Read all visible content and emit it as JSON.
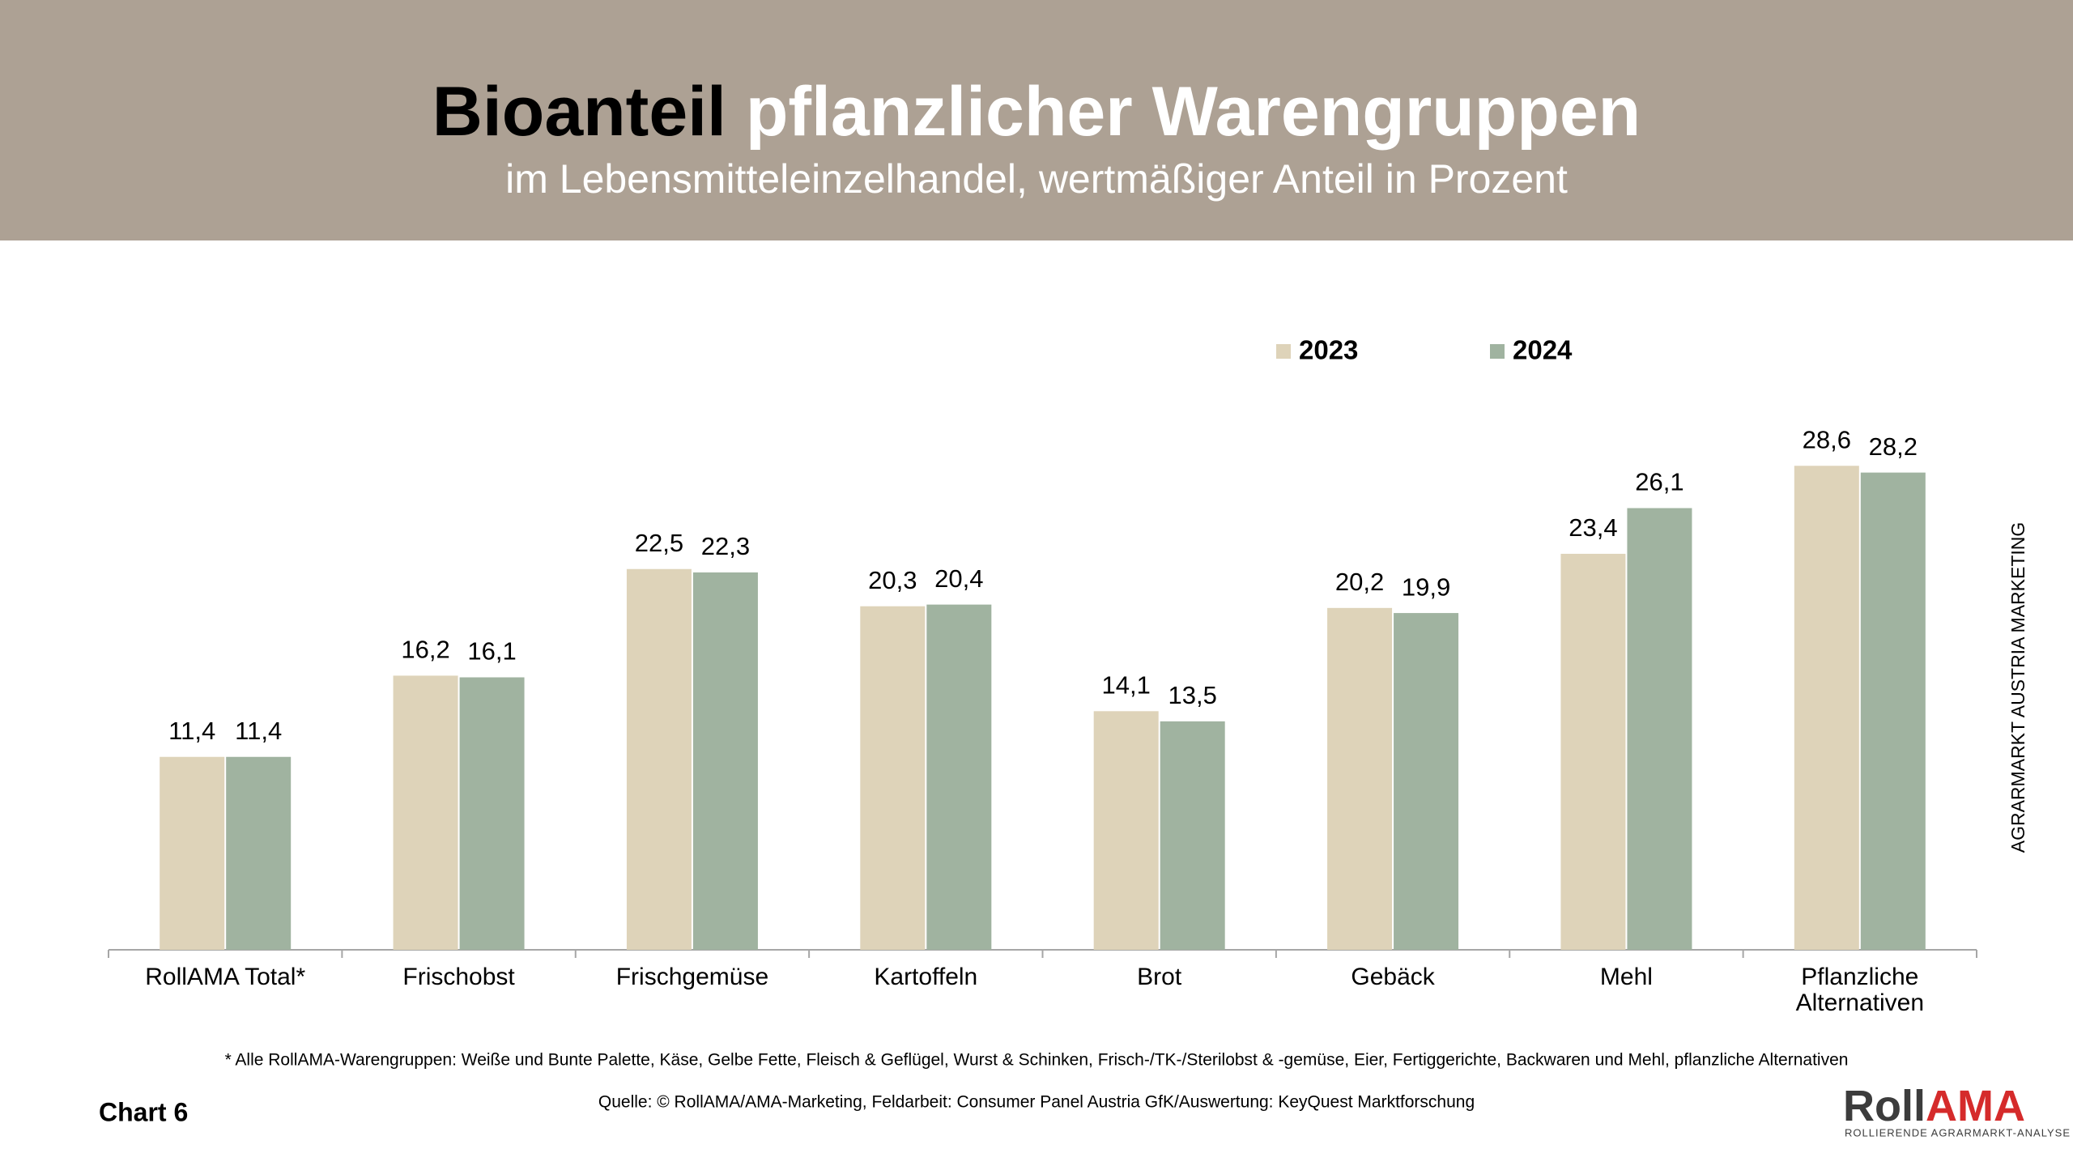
{
  "chart_data": {
    "type": "bar",
    "title": [
      "Bioanteil",
      "pflanzlicher Warengruppen"
    ],
    "subtitle": "im Lebensmitteleinzelhandel, wertmäßiger Anteil in Prozent",
    "categories": [
      "RollAMA Total*",
      "Frischobst",
      "Frischgemüse",
      "Kartoffeln",
      "Brot",
      "Gebäck",
      "Mehl",
      "Pflanzliche\nAlternativen"
    ],
    "series": [
      {
        "name": "2023",
        "color": "#ded3b9",
        "values": [
          11.4,
          16.2,
          22.5,
          20.3,
          14.1,
          20.2,
          23.4,
          28.6
        ],
        "value_labels": [
          "11,4",
          "16,2",
          "22,5",
          "20,3",
          "14,1",
          "20,2",
          "23,4",
          "28,6"
        ]
      },
      {
        "name": "2024",
        "color": "#a0b3a0",
        "values": [
          11.4,
          16.1,
          22.3,
          20.4,
          13.5,
          19.9,
          26.1,
          28.2
        ],
        "value_labels": [
          "11,4",
          "16,1",
          "22,3",
          "20,4",
          "13,5",
          "19,9",
          "26,1",
          "28,2"
        ]
      }
    ],
    "side_note": "AGRARMARKT AUSTRIA MARKETING",
    "footnote": "* Alle RollAMA-Warengruppen: Weiße und Bunte Palette, Käse, Gelbe Fette, Fleisch & Geflügel, Wurst & Schinken, Frisch-/TK-/Sterilobst & -gemüse, Eier, Fertiggerichte, Backwaren und Mehl, pflanzliche Alternativen",
    "chart_label": "Chart 6",
    "source": "Quelle: © RollAMA/AMA-Marketing, Feldarbeit: Consumer Panel Austria GfK/Auswertung: KeyQuest Marktforschung",
    "logo": {
      "roll": "Roll",
      "ama": "AMA",
      "tagline": "ROLLIERENDE AGRARMARKT-ANALYSE"
    }
  }
}
